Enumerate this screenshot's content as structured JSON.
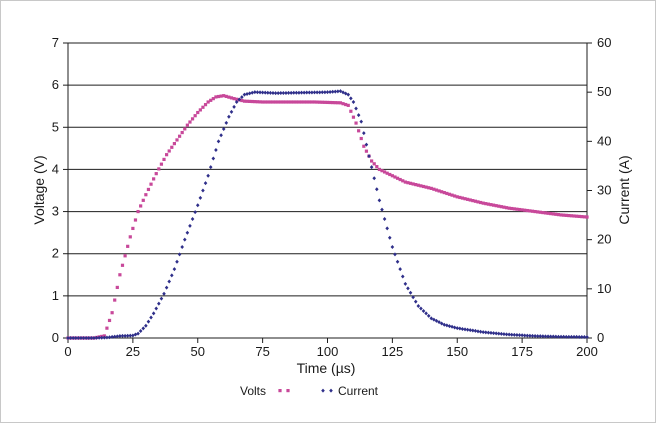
{
  "chart_data": {
    "type": "scatter",
    "title": "",
    "xlabel": "Time (µs)",
    "ylabel": "Voltage (V)",
    "y2label": "Current (A)",
    "xlim": [
      0,
      200
    ],
    "ylim": [
      0,
      7
    ],
    "y2lim": [
      0,
      60
    ],
    "x_ticks": [
      "0",
      "25",
      "50",
      "75",
      "100",
      "125",
      "150",
      "175",
      "200"
    ],
    "y_ticks": [
      "0",
      "1",
      "2",
      "3",
      "4",
      "5",
      "6",
      "7"
    ],
    "y2_ticks": [
      "0",
      "10",
      "20",
      "30",
      "40",
      "50",
      "60"
    ],
    "grid": "horizontal",
    "legend_position": "bottom",
    "series": [
      {
        "name": "Volts",
        "axis": "left",
        "color": "#c8489a",
        "marker": "square",
        "points": [
          [
            0,
            0
          ],
          [
            10,
            0
          ],
          [
            14,
            0.05
          ],
          [
            17,
            0.6
          ],
          [
            20,
            1.5
          ],
          [
            24,
            2.4
          ],
          [
            27,
            3.0
          ],
          [
            30,
            3.4
          ],
          [
            34,
            3.9
          ],
          [
            38,
            4.35
          ],
          [
            42,
            4.7
          ],
          [
            46,
            5.05
          ],
          [
            50,
            5.35
          ],
          [
            54,
            5.6
          ],
          [
            57,
            5.72
          ],
          [
            60,
            5.75
          ],
          [
            64,
            5.68
          ],
          [
            68,
            5.62
          ],
          [
            75,
            5.6
          ],
          [
            85,
            5.6
          ],
          [
            95,
            5.6
          ],
          [
            105,
            5.58
          ],
          [
            108,
            5.52
          ],
          [
            111,
            5.1
          ],
          [
            114,
            4.55
          ],
          [
            117,
            4.2
          ],
          [
            120,
            4.0
          ],
          [
            125,
            3.85
          ],
          [
            130,
            3.7
          ],
          [
            140,
            3.55
          ],
          [
            150,
            3.35
          ],
          [
            160,
            3.2
          ],
          [
            170,
            3.08
          ],
          [
            180,
            3.0
          ],
          [
            190,
            2.92
          ],
          [
            200,
            2.87
          ]
        ]
      },
      {
        "name": "Current",
        "axis": "right",
        "color": "#2f2f8a",
        "marker": "diamond",
        "points": [
          [
            0,
            0
          ],
          [
            10,
            0
          ],
          [
            15,
            0.1
          ],
          [
            20,
            0.4
          ],
          [
            25,
            0.5
          ],
          [
            27,
            0.9
          ],
          [
            30,
            2.5
          ],
          [
            33,
            5.0
          ],
          [
            37,
            9.0
          ],
          [
            41,
            14.0
          ],
          [
            45,
            20.0
          ],
          [
            50,
            27.0
          ],
          [
            54,
            33.0
          ],
          [
            58,
            40.0
          ],
          [
            62,
            45.0
          ],
          [
            65,
            48.0
          ],
          [
            68,
            49.5
          ],
          [
            72,
            50.0
          ],
          [
            80,
            49.8
          ],
          [
            90,
            49.9
          ],
          [
            100,
            50.0
          ],
          [
            105,
            50.2
          ],
          [
            108,
            49.5
          ],
          [
            110,
            48.0
          ],
          [
            113,
            44.0
          ],
          [
            116,
            37.0
          ],
          [
            120,
            28.0
          ],
          [
            125,
            18.5
          ],
          [
            130,
            11.0
          ],
          [
            135,
            6.5
          ],
          [
            140,
            4.0
          ],
          [
            145,
            2.7
          ],
          [
            150,
            2.0
          ],
          [
            160,
            1.2
          ],
          [
            170,
            0.7
          ],
          [
            180,
            0.4
          ],
          [
            190,
            0.25
          ],
          [
            200,
            0.2
          ]
        ]
      }
    ]
  }
}
